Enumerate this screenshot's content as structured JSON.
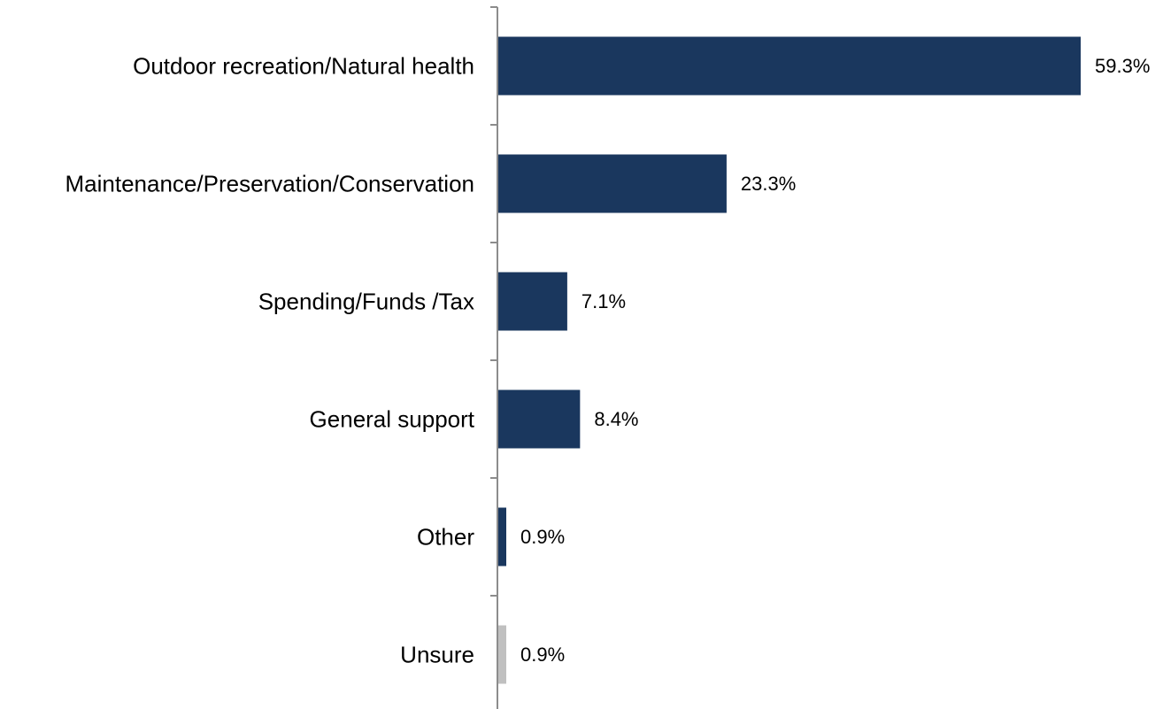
{
  "chart_data": {
    "type": "bar",
    "orientation": "horizontal",
    "categories": [
      "Outdoor recreation/Natural health",
      "Maintenance/Preservation/Conservation",
      "Spending/Funds /Tax",
      "General support",
      "Other",
      "Unsure"
    ],
    "values": [
      59.3,
      23.3,
      7.1,
      8.4,
      0.9,
      0.9
    ],
    "data_labels": [
      "59.3%",
      "23.3%",
      "7.1%",
      "8.4%",
      "0.9%",
      "0.9%"
    ],
    "unit": "%",
    "xlim": [
      0,
      60
    ],
    "grid": false,
    "legend": "none",
    "colors": {
      "primary": "#1a375e",
      "highlight_unsure": "#c0c0c0",
      "axis": "#8c8c8c"
    },
    "bar_colors": [
      "#1a375e",
      "#1a375e",
      "#1a375e",
      "#1a375e",
      "#1a375e",
      "#c0c0c0"
    ]
  }
}
